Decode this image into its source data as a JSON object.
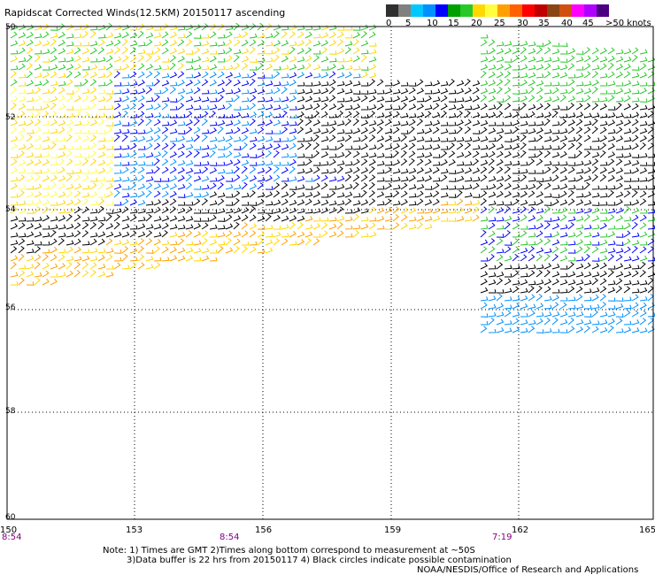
{
  "title": "Rapidscat Corrected Winds(12.5KM) 20150117 ascending",
  "legend": {
    "colors": [
      "#303030",
      "#808080",
      "#00c8ff",
      "#0090ff",
      "#0000ff",
      "#00a000",
      "#28c828",
      "#ffd800",
      "#ffff40",
      "#ffa000",
      "#ff6000",
      "#ff0000",
      "#c00000",
      "#8b4513",
      "#d05010",
      "#ff00ff",
      "#b000ff",
      "#4b0082"
    ],
    "labels": [
      "0",
      "5",
      "10",
      "15",
      "20",
      "25",
      "30",
      "35",
      "40",
      "45",
      ">50 knots"
    ]
  },
  "map": {
    "lon_ticks": [
      "150",
      "153",
      "156",
      "159",
      "162",
      "165"
    ],
    "lat_ticks": [
      "50",
      "52",
      "54",
      "56",
      "58",
      "60"
    ],
    "pass_times": [
      "8:54",
      "8:54",
      "7:19"
    ]
  },
  "notes": {
    "line1": "Note: 1) Times are GMT 2)Times along bottom correspond to measurement at ~50S",
    "line2": "3)Data buffer is 22 hrs from 20150117 4) Black circles indicate possible contamination",
    "credit": "NOAA/NESDIS/Office of Research and Applications"
  }
}
